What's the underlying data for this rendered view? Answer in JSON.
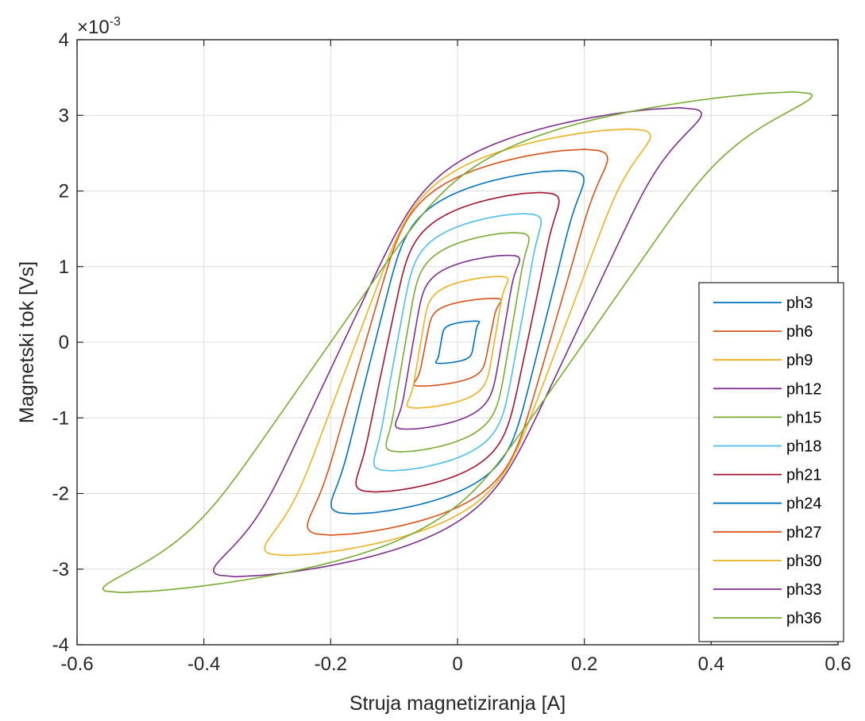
{
  "chart_data": {
    "type": "line",
    "title": "",
    "xlabel": "Struja magnetiziranja [A]",
    "ylabel": "Magnetski tok [Vs]",
    "exponent_base": "×10",
    "exponent_power": "-3",
    "xlim": [
      -0.6,
      0.6
    ],
    "ylim": [
      -4,
      4
    ],
    "grid": true,
    "legend_position": "bottom-right",
    "x_ticks": [
      "-0.6",
      "-0.4",
      "-0.2",
      "0",
      "0.2",
      "0.4",
      "0.6"
    ],
    "y_ticks": [
      "-4",
      "-3",
      "-2",
      "-1",
      "0",
      "1",
      "2",
      "3",
      "4"
    ],
    "series": [
      {
        "name": "ph3",
        "color": "#0072BD",
        "imax": 0.028,
        "phimax": 0.28,
        "width": 0.026
      },
      {
        "name": "ph6",
        "color": "#D95319",
        "imax": 0.057,
        "phimax": 0.58,
        "width": 0.05
      },
      {
        "name": "ph9",
        "color": "#EDB120",
        "imax": 0.065,
        "phimax": 0.87,
        "width": 0.058
      },
      {
        "name": "ph12",
        "color": "#7E2F8E",
        "imax": 0.08,
        "phimax": 1.15,
        "width": 0.07
      },
      {
        "name": "ph15",
        "color": "#77AC30",
        "imax": 0.09,
        "phimax": 1.45,
        "width": 0.082
      },
      {
        "name": "ph18",
        "color": "#4DBEEE",
        "imax": 0.105,
        "phimax": 1.7,
        "width": 0.095
      },
      {
        "name": "ph21",
        "color": "#A2142F",
        "imax": 0.13,
        "phimax": 1.98,
        "width": 0.11
      },
      {
        "name": "ph24",
        "color": "#0072BD",
        "imax": 0.165,
        "phimax": 2.27,
        "width": 0.13
      },
      {
        "name": "ph27",
        "color": "#D95319",
        "imax": 0.2,
        "phimax": 2.55,
        "width": 0.145
      },
      {
        "name": "ph30",
        "color": "#EDB120",
        "imax": 0.27,
        "phimax": 2.82,
        "width": 0.16
      },
      {
        "name": "ph33",
        "color": "#7E2F8E",
        "imax": 0.35,
        "phimax": 3.1,
        "width": 0.18
      },
      {
        "name": "ph36",
        "color": "#77AC30",
        "imax": 0.53,
        "phimax": 3.31,
        "width": 0.2
      }
    ]
  }
}
